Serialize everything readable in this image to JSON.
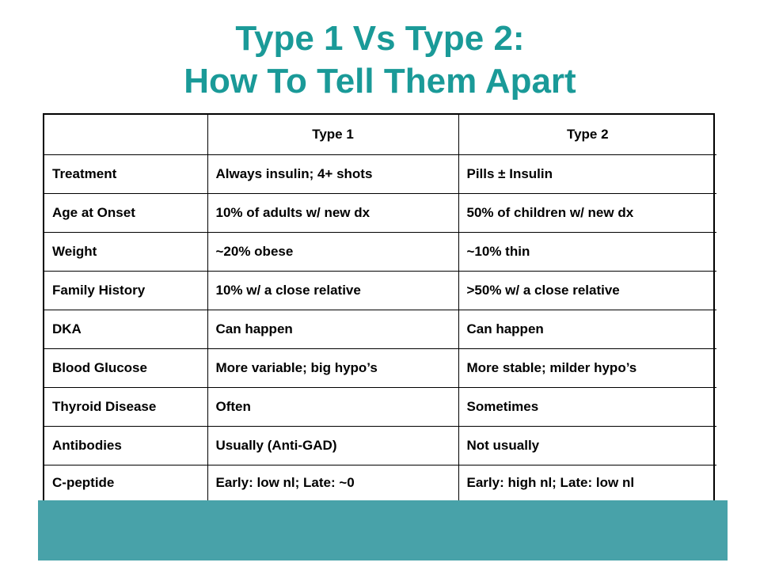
{
  "title": {
    "line1": "Type 1 Vs Type 2:",
    "line2": "How To Tell Them Apart"
  },
  "colors": {
    "title": "#1a9a98",
    "footer_bar": "#48a2a9"
  },
  "table": {
    "headers": [
      "",
      "Type 1",
      "Type 2"
    ],
    "rows": [
      [
        "Treatment",
        "Always insulin; 4+ shots",
        "Pills ± Insulin"
      ],
      [
        "Age at Onset",
        "10% of adults w/ new dx",
        "50% of children w/ new dx"
      ],
      [
        "Weight",
        "~20% obese",
        "~10% thin"
      ],
      [
        "Family History",
        "10% w/ a close relative",
        ">50% w/ a close relative"
      ],
      [
        "DKA",
        "Can happen",
        "Can happen"
      ],
      [
        "Blood Glucose",
        "More variable; big hypo’s",
        "More stable; milder hypo’s"
      ],
      [
        "Thyroid Disease",
        "Often",
        "Sometimes"
      ],
      [
        "Antibodies",
        "Usually (Anti-GAD)",
        "Not usually"
      ],
      [
        "C-peptide",
        "Early: low nl; Late: ~0",
        "Early: high nl; Late: low nl"
      ]
    ]
  }
}
